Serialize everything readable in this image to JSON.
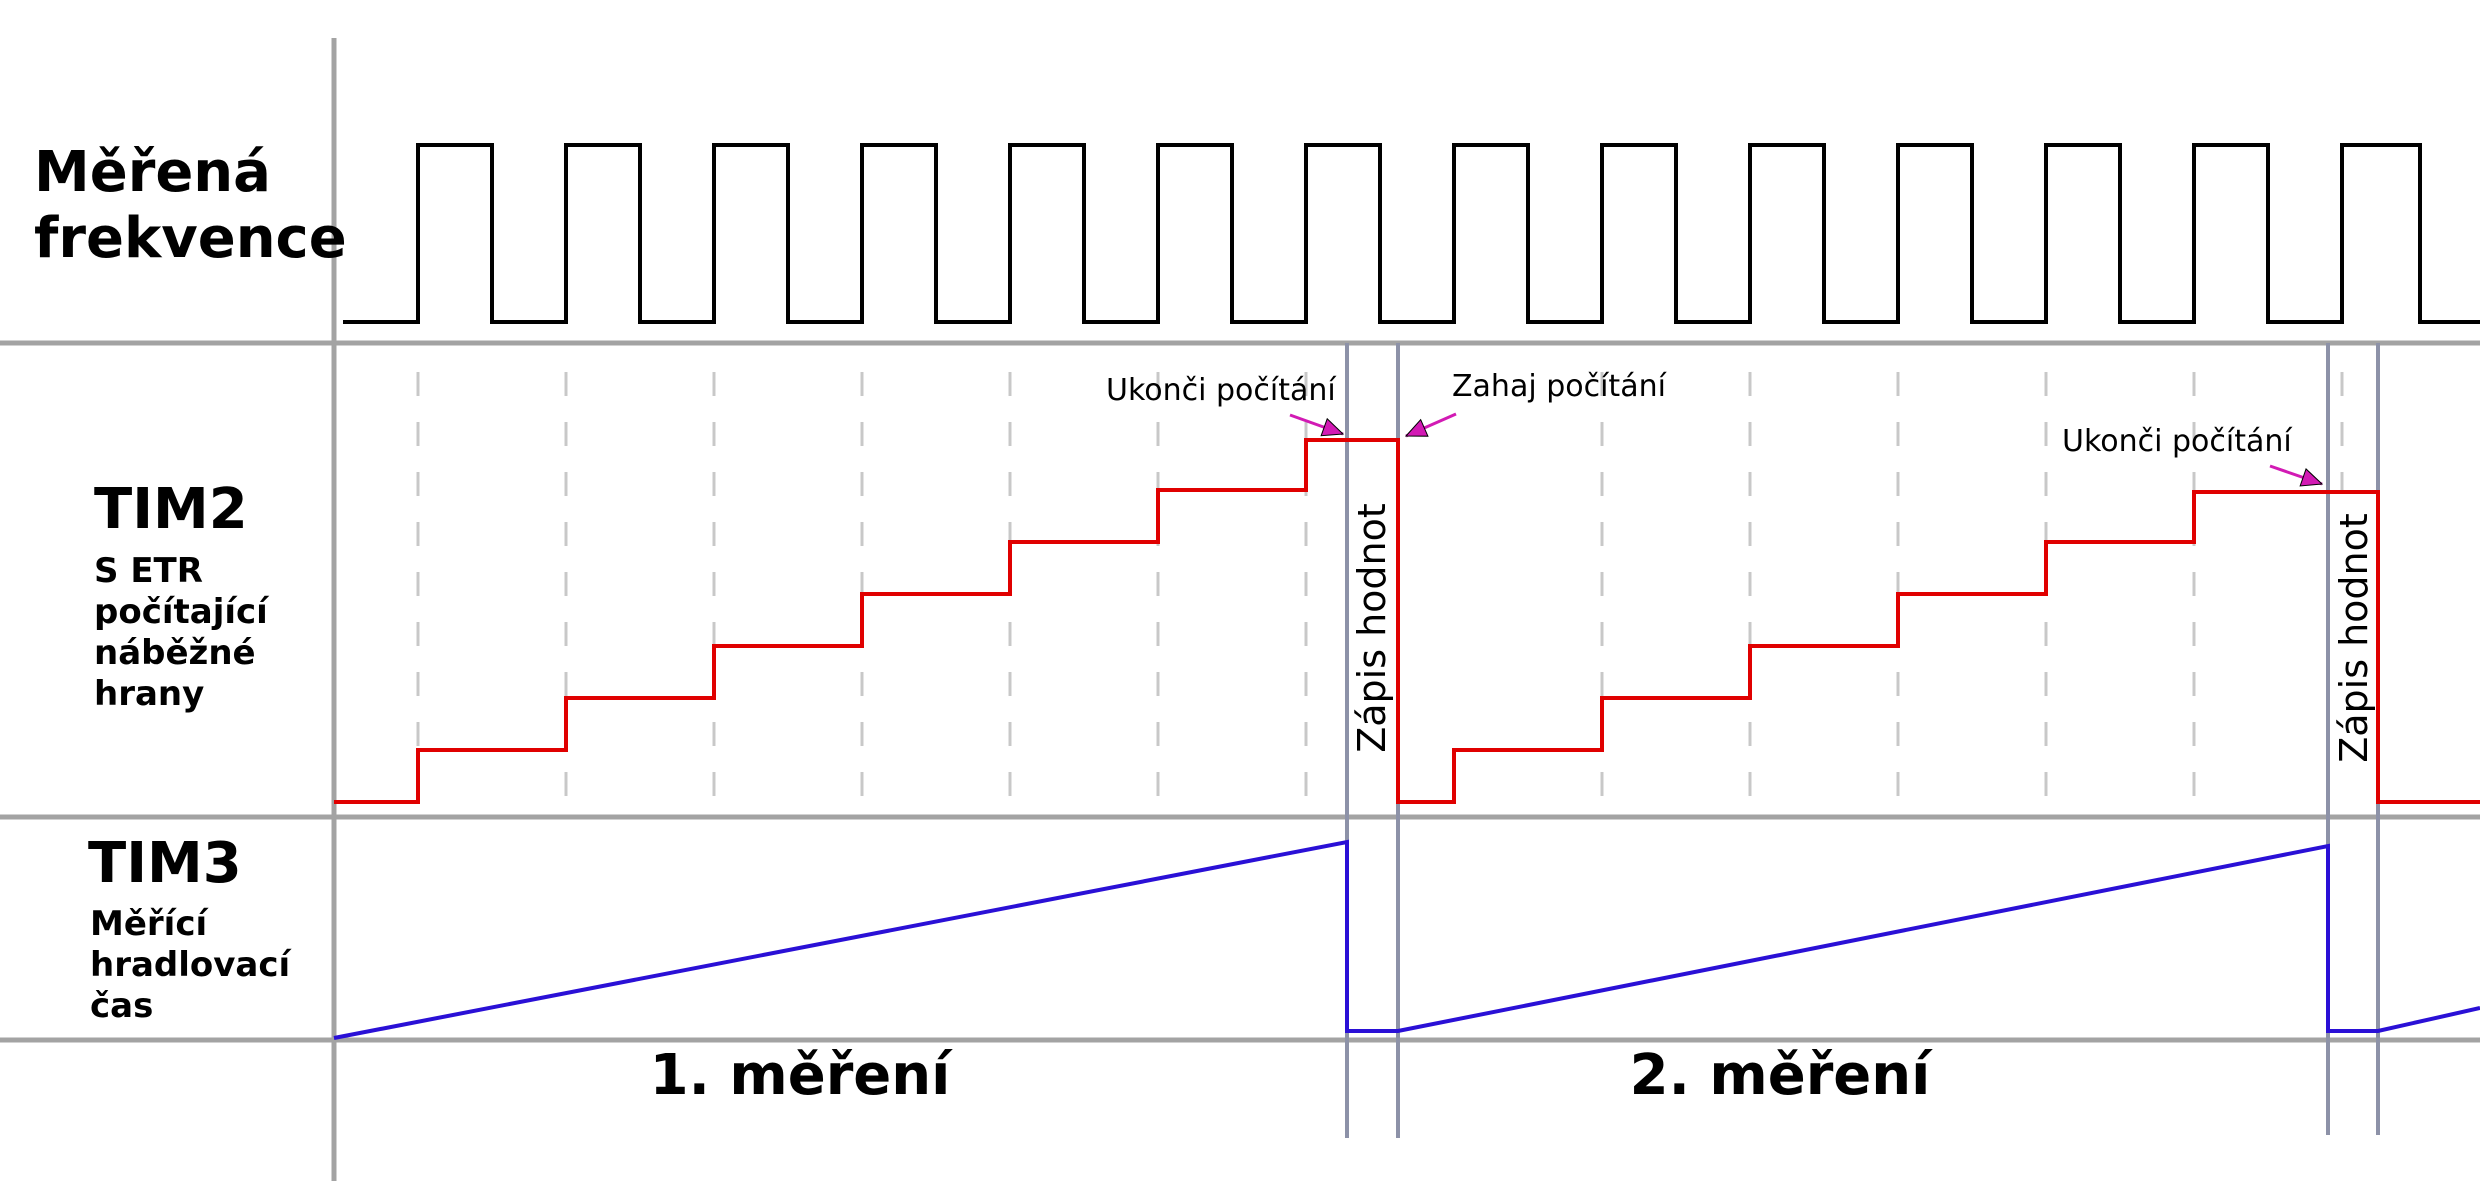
{
  "labels": {
    "signal_row": "Měřená frekvence",
    "tim2": {
      "title": "TIM2",
      "subtitle": "S ETR počítající náběžné hrany"
    },
    "tim3": {
      "title": "TIM3",
      "subtitle": "Měřící hradlovací čas"
    },
    "measurement_1": "1. měření",
    "measurement_2": "2. měření",
    "stop_counting": "Ukonči počítání",
    "start_counting": "Zahaj počítání",
    "write_value": "Zápis hodnot"
  },
  "signals": {
    "measured_frequency": {
      "type": "square-wave",
      "pulses": 14
    },
    "tim2_counter": {
      "type": "staircase",
      "steps_per_measurement": 7
    },
    "tim3_gate": {
      "type": "ramp"
    }
  },
  "colors": {
    "grid": "#a3a3a3",
    "square_wave": "#000000",
    "tim2_counter": "#e00000",
    "tim3_gate": "#2a10d6",
    "markers": "#8d92a8",
    "dashed": "#c8c8c8",
    "arrow": "#d21ab4"
  }
}
